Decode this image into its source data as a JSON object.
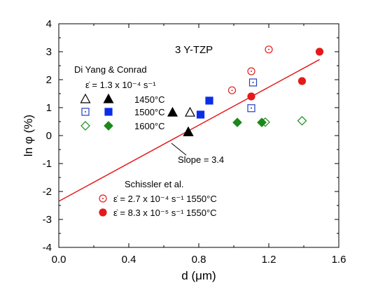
{
  "chart_data": {
    "type": "scatter",
    "xlabel": "d (μm)",
    "ylabel": "ln φ (%)",
    "xlim": [
      0.0,
      1.6
    ],
    "ylim": [
      -4,
      4
    ],
    "xticks": [
      0.0,
      0.4,
      0.8,
      1.2,
      1.6
    ],
    "xtick_labels": [
      "0.0",
      "0.4",
      "0.8",
      "1.2",
      "1.6"
    ],
    "yticks": [
      -4,
      -3,
      -2,
      -1,
      0,
      1,
      2,
      3,
      4
    ],
    "ytick_labels": [
      "-4",
      "-3",
      "-2",
      "-1",
      "0",
      "1",
      "2",
      "3",
      "4"
    ],
    "material_label": "3 Y-TZP",
    "legend_groups": [
      {
        "title": "Di Yang & Conrad",
        "subtitle": "ε̇ = 1.3 x 10⁻⁴ s⁻¹"
      },
      {
        "title": "Schissler et al.",
        "subtitle": ""
      }
    ],
    "series": [
      {
        "name": "1450°C",
        "label": "1450°C",
        "marker": "triangle",
        "filled": false,
        "color": "#000000",
        "points": [
          [
            0.74,
            0.12
          ],
          [
            0.75,
            0.82
          ]
        ],
        "group": 0
      },
      {
        "name": "1450°C filled",
        "label": "",
        "marker": "triangle",
        "filled": true,
        "color": "#000000",
        "points": [
          [
            0.65,
            0.82
          ],
          [
            0.74,
            0.12
          ]
        ],
        "group": 0
      },
      {
        "name": "1500°C",
        "label": "1500°C",
        "marker": "square-dot",
        "filled": false,
        "color": "#1f3fbf",
        "points": [
          [
            1.1,
            0.98
          ],
          [
            1.11,
            1.9
          ]
        ],
        "group": 0
      },
      {
        "name": "1500°C filled",
        "label": "",
        "marker": "square",
        "filled": true,
        "color": "#0a2ee8",
        "points": [
          [
            0.81,
            0.75
          ],
          [
            0.86,
            1.25
          ]
        ],
        "group": 0
      },
      {
        "name": "1600°C",
        "label": "1600°C",
        "marker": "diamond",
        "filled": false,
        "color": "#1a8a1a",
        "points": [
          [
            1.18,
            0.48
          ],
          [
            1.39,
            0.53
          ]
        ],
        "group": 0
      },
      {
        "name": "1600°C filled",
        "label": "",
        "marker": "diamond",
        "filled": true,
        "color": "#1a8a1a",
        "points": [
          [
            1.02,
            0.47
          ],
          [
            1.16,
            0.47
          ]
        ],
        "group": 0
      },
      {
        "name": "Schissler 2.7e-4",
        "label": "ε̇ = 2.7 x 10⁻⁴ s⁻¹ 1550°C",
        "marker": "circle-dot",
        "filled": false,
        "color": "#e41a1a",
        "points": [
          [
            0.99,
            1.62
          ],
          [
            1.1,
            2.3
          ],
          [
            1.2,
            3.08
          ]
        ],
        "group": 1
      },
      {
        "name": "Schissler 8.3e-5",
        "label": "ε̇ = 8.3 x 10⁻⁵ s⁻¹ 1550°C",
        "marker": "circle",
        "filled": true,
        "color": "#e41a1a",
        "points": [
          [
            1.1,
            1.4
          ],
          [
            1.39,
            1.95
          ],
          [
            1.49,
            3.0
          ]
        ],
        "group": 1
      }
    ],
    "fit_line": {
      "color": "#e41a1a",
      "x": [
        0.0,
        1.49
      ],
      "y": [
        -2.35,
        2.72
      ]
    },
    "annotation": {
      "text": "Slope = 3.4",
      "x": 0.63,
      "y": -0.3
    }
  }
}
